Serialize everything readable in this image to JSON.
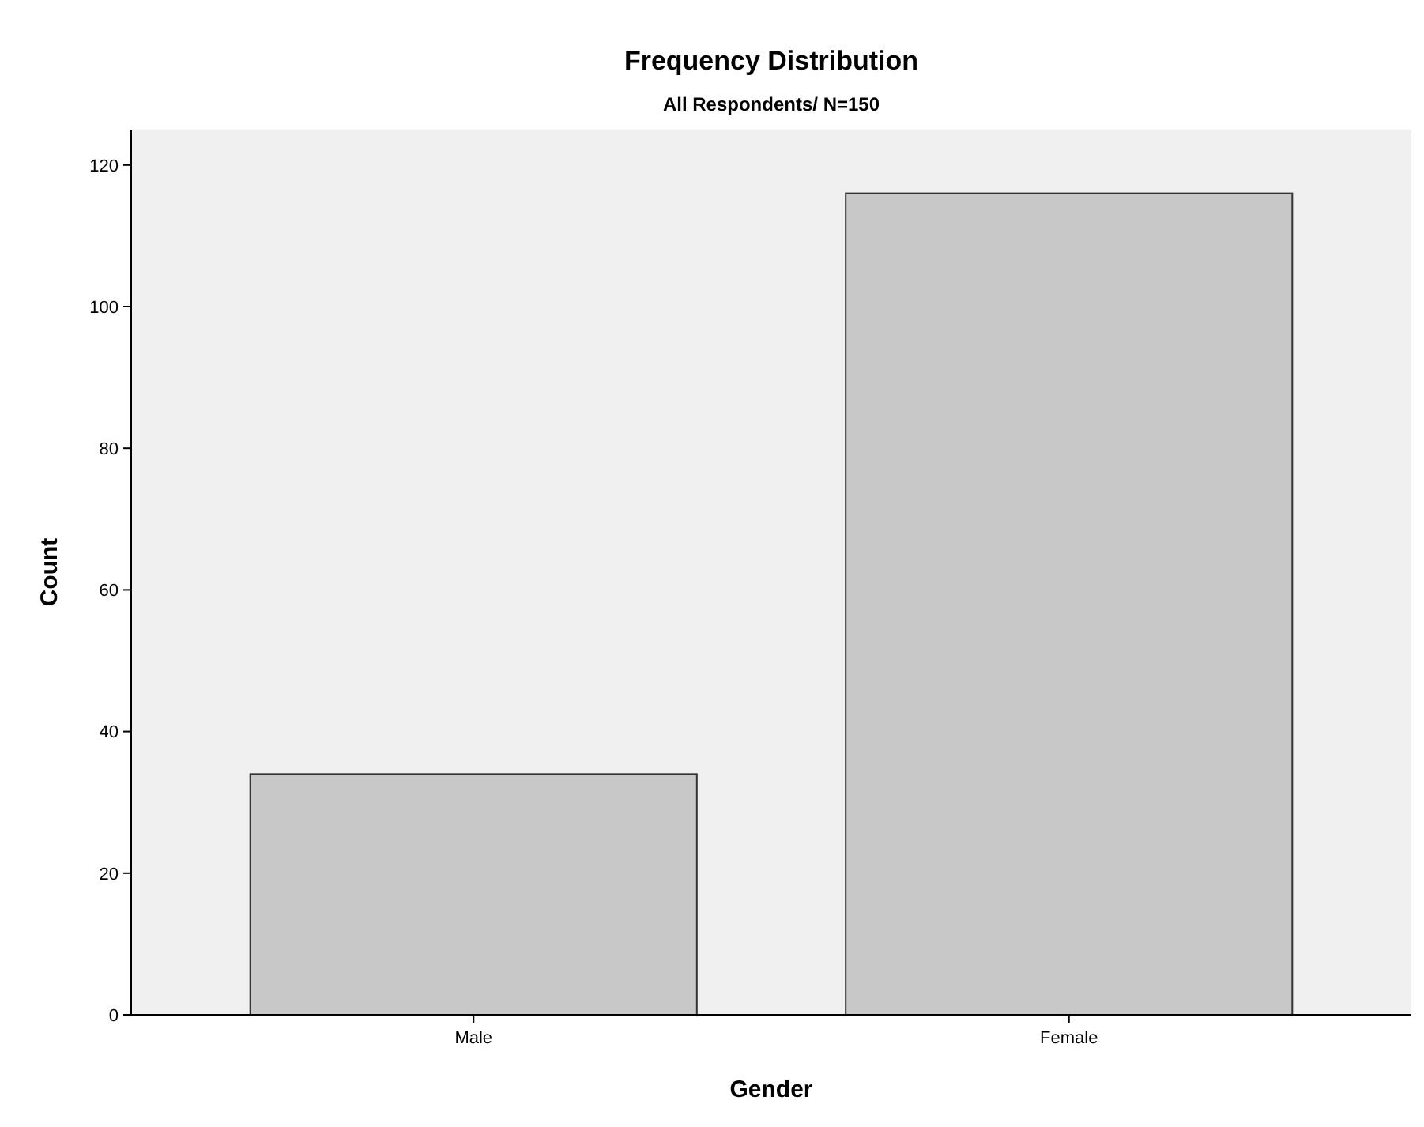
{
  "chart_data": {
    "type": "bar",
    "title": "Frequency Distribution",
    "subtitle": "All Respondents/ N=150",
    "xlabel": "Gender",
    "ylabel": "Count",
    "categories": [
      "Male",
      "Female"
    ],
    "values": [
      34,
      116
    ],
    "color": "#c8c8c8",
    "ylim": [
      0,
      125
    ],
    "yticks": [
      0,
      20,
      40,
      60,
      80,
      100,
      120
    ],
    "grid": false
  }
}
